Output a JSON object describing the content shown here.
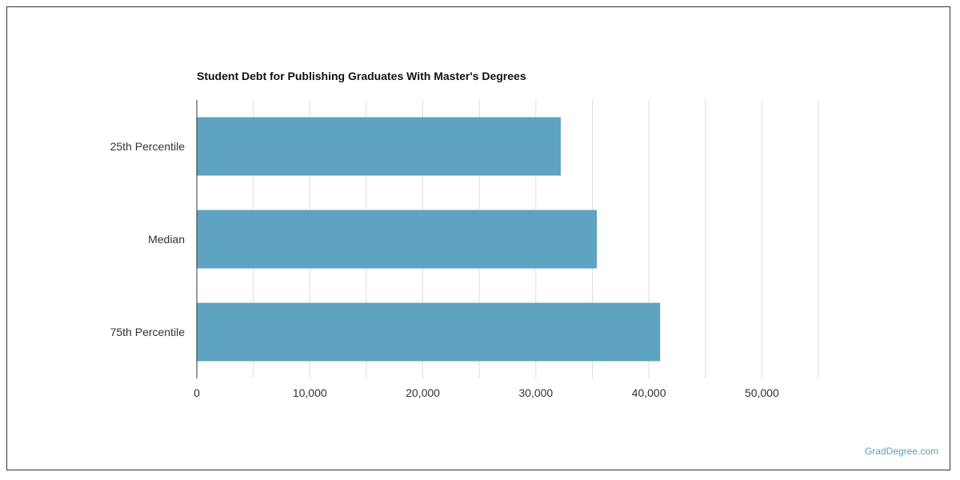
{
  "chart_data": {
    "type": "bar",
    "orientation": "horizontal",
    "title": "Student Debt for Publishing Graduates With Master's Degrees",
    "categories": [
      "25th Percentile",
      "Median",
      "75th Percentile"
    ],
    "values": [
      32200,
      35400,
      41000
    ],
    "xlim": [
      0,
      55000
    ],
    "xticks": [
      0,
      10000,
      20000,
      30000,
      40000,
      50000
    ],
    "xtick_labels": [
      "0",
      "10,000",
      "20,000",
      "30,000",
      "40,000",
      "50,000"
    ],
    "grid": true,
    "bar_color": "#5ea3bf",
    "grid_color": "#dddddd"
  },
  "watermark": "GradDegree.com"
}
